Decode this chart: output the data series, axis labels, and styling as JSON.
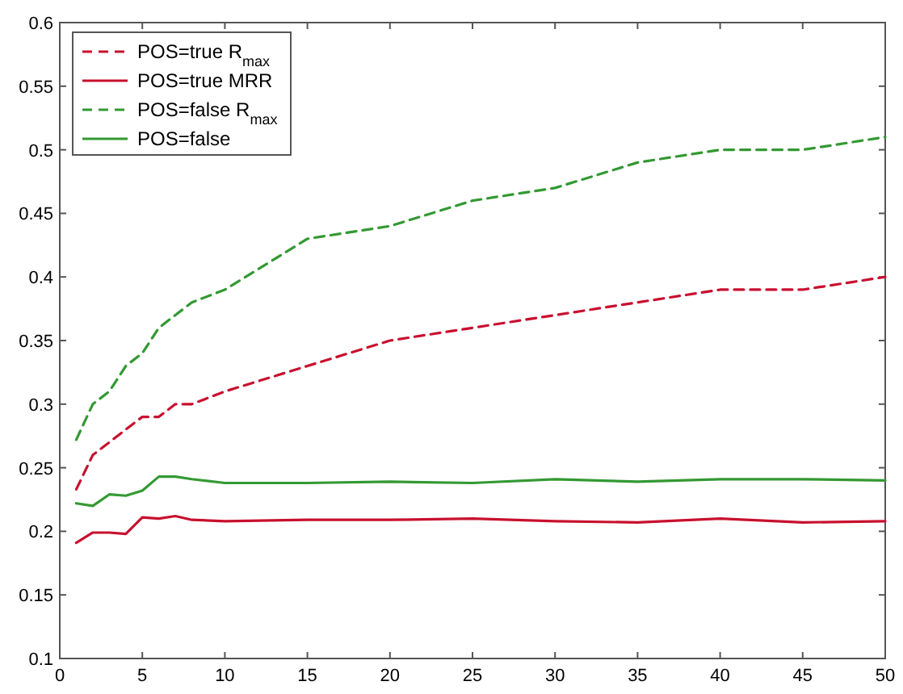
{
  "chart_data": {
    "type": "line",
    "x": [
      1,
      2,
      3,
      4,
      5,
      6,
      7,
      8,
      10,
      15,
      20,
      25,
      30,
      35,
      40,
      45,
      50
    ],
    "series": [
      {
        "name": "POS=true R$_{max}$",
        "color": "#c8102e",
        "line_style": "dashed",
        "values": [
          0.233,
          0.26,
          0.27,
          0.28,
          0.29,
          0.29,
          0.3,
          0.3,
          0.31,
          0.33,
          0.35,
          0.36,
          0.37,
          0.38,
          0.39,
          0.39,
          0.4
        ]
      },
      {
        "name": "POS=true MRR",
        "color": "#c8102e",
        "line_style": "solid",
        "values": [
          0.191,
          0.199,
          0.199,
          0.198,
          0.211,
          0.21,
          0.212,
          0.209,
          0.208,
          0.209,
          0.209,
          0.21,
          0.208,
          0.207,
          0.21,
          0.207,
          0.208
        ]
      },
      {
        "name": "POS=false R$_{max}$",
        "color": "#339933",
        "line_style": "dashed",
        "values": [
          0.272,
          0.3,
          0.31,
          0.33,
          0.34,
          0.36,
          0.37,
          0.38,
          0.39,
          0.43,
          0.44,
          0.46,
          0.47,
          0.49,
          0.5,
          0.5,
          0.51
        ]
      },
      {
        "name": "POS=false",
        "color": "#339933",
        "line_style": "solid",
        "values": [
          0.222,
          0.22,
          0.229,
          0.228,
          0.232,
          0.243,
          0.243,
          0.241,
          0.238,
          0.238,
          0.239,
          0.238,
          0.241,
          0.239,
          0.241,
          0.241,
          0.24
        ]
      }
    ],
    "xlim": [
      0,
      50
    ],
    "xticks": [
      0,
      5,
      10,
      15,
      20,
      25,
      30,
      35,
      40,
      45,
      50
    ],
    "ylim": [
      0.1,
      0.6
    ],
    "yticks": [
      0.1,
      0.15,
      0.2,
      0.25,
      0.3,
      0.35,
      0.4,
      0.45,
      0.5,
      0.55,
      0.6
    ],
    "legend": "top left",
    "grid": false
  }
}
